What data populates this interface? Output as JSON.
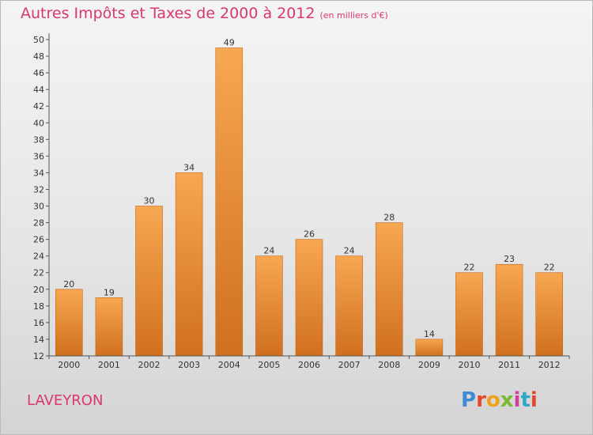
{
  "title": {
    "main": "Autres Impôts et Taxes de 2000 à 2012",
    "sub": "(en milliers d'€)"
  },
  "place_name": "LAVEYRON",
  "logo": {
    "text": "Proxiti"
  },
  "colors": {
    "title": "#d9386a",
    "bar_light": "#f7a752",
    "bar_dark": "#d0701e",
    "bar_edge": "#c56718"
  },
  "chart_data": {
    "type": "bar",
    "categories": [
      "2000",
      "2001",
      "2002",
      "2003",
      "2004",
      "2005",
      "2006",
      "2007",
      "2008",
      "2009",
      "2010",
      "2011",
      "2012"
    ],
    "values": [
      20,
      19,
      30,
      34,
      49,
      24,
      26,
      24,
      28,
      14,
      22,
      23,
      22
    ],
    "title": "Autres Impôts et Taxes de 2000 à 2012",
    "subtitle": "(en milliers d'€)",
    "xlabel": "",
    "ylabel": "",
    "ylim": [
      12,
      50
    ],
    "yticks": [
      12,
      14,
      16,
      18,
      20,
      22,
      24,
      26,
      28,
      30,
      32,
      34,
      36,
      38,
      40,
      42,
      44,
      46,
      48,
      50
    ],
    "grid": false,
    "data_labels": true,
    "legend": "none"
  }
}
